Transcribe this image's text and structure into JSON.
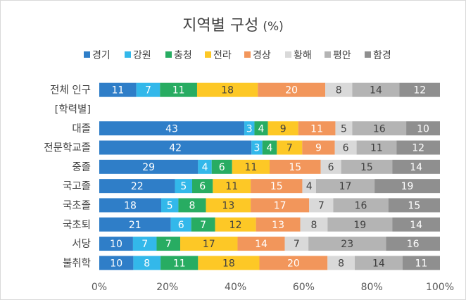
{
  "chart_data": {
    "type": "bar",
    "orientation": "horizontal",
    "stacked": "percent",
    "title": "지역별 구성",
    "title_unit": "(%)",
    "categories": [
      "전체 인구",
      "[학력별]",
      "대졸",
      "전문학교졸",
      "중졸",
      "국고졸",
      "국초졸",
      "국초퇴",
      "서당",
      "불취학"
    ],
    "series": [
      {
        "name": "경기",
        "color": "#2f7ec8",
        "label_color": "#ffffff",
        "values": [
          11,
          null,
          43,
          42,
          29,
          22,
          18,
          21,
          10,
          10
        ]
      },
      {
        "name": "강원",
        "color": "#33b8ea",
        "label_color": "#ffffff",
        "values": [
          7,
          null,
          3,
          3,
          4,
          5,
          5,
          6,
          7,
          8
        ]
      },
      {
        "name": "충청",
        "color": "#28ac62",
        "label_color": "#ffffff",
        "values": [
          11,
          null,
          4,
          4,
          6,
          6,
          8,
          7,
          7,
          11
        ]
      },
      {
        "name": "전라",
        "color": "#fdc826",
        "label_color": "#404040",
        "values": [
          18,
          null,
          9,
          7,
          11,
          11,
          13,
          12,
          17,
          18
        ]
      },
      {
        "name": "경상",
        "color": "#f2965b",
        "label_color": "#ffffff",
        "values": [
          20,
          null,
          11,
          9,
          15,
          15,
          17,
          13,
          14,
          20
        ]
      },
      {
        "name": "황해",
        "color": "#d9d9d9",
        "label_color": "#404040",
        "values": [
          8,
          null,
          5,
          6,
          6,
          4,
          7,
          8,
          7,
          8
        ]
      },
      {
        "name": "평안",
        "color": "#b4b4b4",
        "label_color": "#404040",
        "values": [
          14,
          null,
          16,
          11,
          15,
          17,
          16,
          19,
          23,
          14
        ]
      },
      {
        "name": "함경",
        "color": "#8f8f8f",
        "label_color": "#ffffff",
        "values": [
          12,
          null,
          10,
          12,
          14,
          19,
          15,
          14,
          16,
          11
        ]
      }
    ],
    "xlim": [
      0,
      100
    ],
    "x_ticks": [
      "0%",
      "20%",
      "40%",
      "60%",
      "80%",
      "100%"
    ],
    "legend_position": "top",
    "grid": false
  }
}
